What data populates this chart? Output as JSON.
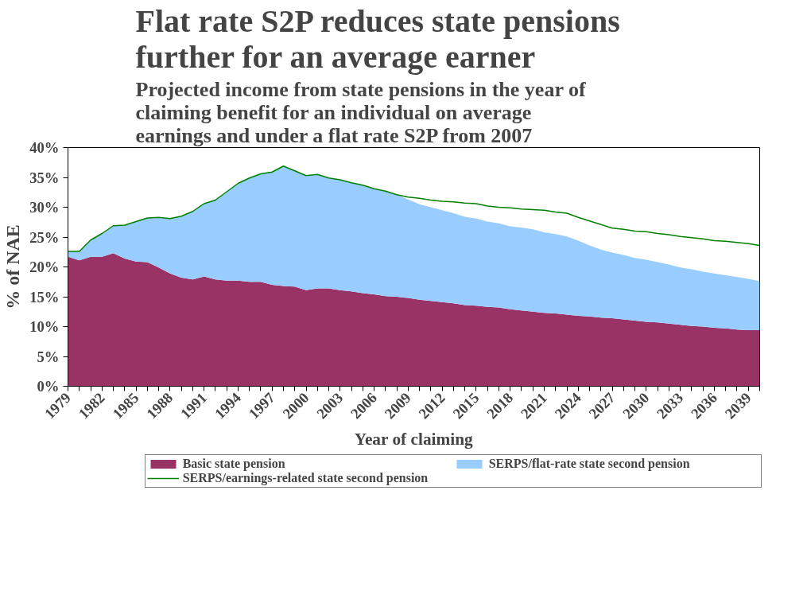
{
  "chart_data": {
    "type": "area",
    "title": "Flat rate S2P reduces state pensions further for an average earner",
    "subtitle": "Projected income from state pensions in the year of claiming benefit for an individual on average earnings and under a flat rate S2P from 2007",
    "xlabel": "Year of claiming",
    "ylabel": "% of NAE",
    "categories": [
      "1979",
      null,
      null,
      "1982",
      null,
      null,
      "1985",
      null,
      null,
      "1988",
      null,
      null,
      "1991",
      null,
      null,
      "1994",
      null,
      null,
      "1997",
      null,
      null,
      "2000",
      null,
      null,
      "2003",
      null,
      null,
      "2006",
      null,
      null,
      "2009",
      null,
      null,
      "2012",
      null,
      null,
      "2015",
      null,
      null,
      "2018",
      null,
      null,
      "2021",
      null,
      null,
      "2024",
      null,
      null,
      "2027",
      null,
      null,
      "2030",
      null,
      null,
      "2033",
      null,
      null,
      "2036",
      null,
      null,
      "2039",
      null
    ],
    "stacked": true,
    "series": [
      {
        "name": "Basic state pension",
        "color": "#993366",
        "values": [
          21.7,
          21.1,
          21.7,
          21.7,
          22.3,
          21.4,
          20.9,
          20.8,
          19.9,
          18.9,
          18.2,
          17.9,
          18.4,
          17.9,
          17.7,
          17.7,
          17.5,
          17.5,
          17.0,
          16.8,
          16.7,
          16.1,
          16.4,
          16.4,
          16.1,
          15.9,
          15.6,
          15.4,
          15.1,
          15.0,
          14.8,
          14.5,
          14.3,
          14.1,
          13.9,
          13.6,
          13.5,
          13.3,
          13.2,
          12.9,
          12.7,
          12.5,
          12.3,
          12.2,
          12.0,
          11.8,
          11.7,
          11.5,
          11.4,
          11.2,
          11.0,
          10.8,
          10.7,
          10.5,
          10.3,
          10.1,
          10.0,
          9.8,
          9.7,
          9.5,
          9.4,
          9.4
        ]
      },
      {
        "name": "SERPS/flat-rate state second pension",
        "color": "#99ccff",
        "values": [
          0.9,
          1.5,
          2.8,
          3.9,
          4.6,
          5.6,
          6.7,
          7.4,
          8.4,
          9.2,
          10.3,
          11.4,
          12.2,
          13.3,
          14.9,
          16.3,
          17.4,
          18.1,
          18.9,
          20.1,
          19.4,
          19.2,
          19.1,
          18.5,
          18.5,
          18.2,
          18.1,
          17.7,
          17.6,
          17.1,
          16.5,
          16.0,
          15.7,
          15.4,
          15.1,
          14.8,
          14.6,
          14.3,
          14.1,
          13.9,
          13.9,
          13.8,
          13.5,
          13.3,
          13.1,
          12.6,
          11.9,
          11.4,
          11.0,
          10.8,
          10.5,
          10.4,
          10.1,
          9.9,
          9.6,
          9.5,
          9.2,
          9.1,
          8.9,
          8.8,
          8.6,
          8.2
        ]
      },
      {
        "name": "SERPS/earnings-related state second pension",
        "type": "line",
        "color": "#008000",
        "values": [
          22.6,
          22.6,
          24.5,
          25.6,
          26.9,
          27.0,
          27.6,
          28.2,
          28.3,
          28.1,
          28.5,
          29.3,
          30.6,
          31.2,
          32.6,
          34.0,
          34.9,
          35.6,
          35.9,
          36.9,
          36.1,
          35.3,
          35.5,
          34.9,
          34.6,
          34.1,
          33.7,
          33.1,
          32.7,
          32.1,
          31.7,
          31.5,
          31.2,
          31.0,
          30.9,
          30.7,
          30.6,
          30.2,
          30.0,
          29.9,
          29.7,
          29.6,
          29.5,
          29.2,
          29.0,
          28.3,
          27.7,
          27.1,
          26.5,
          26.3,
          26.0,
          25.9,
          25.6,
          25.4,
          25.1,
          24.9,
          24.7,
          24.4,
          24.3,
          24.1,
          23.9,
          23.6
        ]
      }
    ],
    "ylim": [
      0,
      40
    ],
    "yticks": [
      {
        "value": 0,
        "label": "0%"
      },
      {
        "value": 5,
        "label": "5%"
      },
      {
        "value": 10,
        "label": "10%"
      },
      {
        "value": 15,
        "label": "15%"
      },
      {
        "value": 20,
        "label": "20%"
      },
      {
        "value": 25,
        "label": "25%"
      },
      {
        "value": 30,
        "label": "30%"
      },
      {
        "value": 35,
        "label": "35%"
      },
      {
        "value": 40,
        "label": "40%"
      }
    ],
    "grid": false,
    "legend": "bottom",
    "marker": "none",
    "line_style": "solid"
  }
}
